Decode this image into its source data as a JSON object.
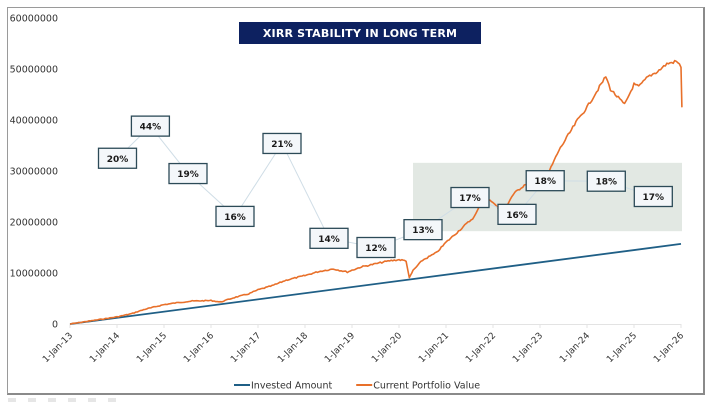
{
  "chart_data": {
    "type": "line",
    "title": "XIRR STABILITY IN LONG TERM",
    "xlabel": "",
    "ylabel": "",
    "ylim": [
      0,
      60000000
    ],
    "yticks": [
      0,
      10000000,
      20000000,
      30000000,
      40000000,
      50000000,
      60000000
    ],
    "ytick_labels": [
      "0",
      "10000000",
      "20000000",
      "30000000",
      "40000000",
      "50000000",
      "60000000"
    ],
    "xlim": [
      2013.0,
      2026.0
    ],
    "xtick_labels": [
      "1-Jan-13",
      "1-Jan-14",
      "1-Jan-15",
      "1-Jan-16",
      "1-Jan-17",
      "1-Jan-18",
      "1-Jan-19",
      "1-Jan-20",
      "1-Jan-21",
      "1-Jan-22",
      "1-Jan-23",
      "1-Jan-24",
      "1-Jan-25",
      "1-Jan-26"
    ],
    "grid": false,
    "legend_position": "bottom",
    "series": [
      {
        "name": "Invested Amount",
        "color": "#1f5f86",
        "x": [
          2013.0,
          2026.0
        ],
        "values": [
          0,
          15700000
        ]
      },
      {
        "name": "Current Portfolio Value",
        "color": "#e8702a",
        "x": [
          2013.0,
          2013.5,
          2014.0,
          2014.3,
          2014.6,
          2015.0,
          2015.3,
          2015.6,
          2016.0,
          2016.2,
          2016.5,
          2016.8,
          2017.0,
          2017.3,
          2017.6,
          2018.0,
          2018.3,
          2018.6,
          2018.9,
          2019.2,
          2019.5,
          2019.8,
          2020.0,
          2020.15,
          2020.22,
          2020.3,
          2020.5,
          2020.8,
          2021.0,
          2021.3,
          2021.6,
          2021.8,
          2022.0,
          2022.2,
          2022.4,
          2022.5,
          2022.7,
          2022.9,
          2023.0,
          2023.2,
          2023.4,
          2023.6,
          2023.8,
          2024.0,
          2024.2,
          2024.4,
          2024.5,
          2024.6,
          2024.8,
          2025.0,
          2025.1,
          2025.3,
          2025.5,
          2025.7,
          2025.9,
          2026.0,
          2026.02
        ],
        "values": [
          0,
          700000,
          1400000,
          2000000,
          2900000,
          3800000,
          4200000,
          4500000,
          4600000,
          4300000,
          5200000,
          5900000,
          6700000,
          7500000,
          8600000,
          9500000,
          10300000,
          10800000,
          10200000,
          11200000,
          11800000,
          12400000,
          12600000,
          12400000,
          9000000,
          10500000,
          12500000,
          14000000,
          16000000,
          18500000,
          21000000,
          24500000,
          24000000,
          21500000,
          25000000,
          26000000,
          27500000,
          26200000,
          27000000,
          30000000,
          34000000,
          37000000,
          40000000,
          42500000,
          45500000,
          48500000,
          46000000,
          45000000,
          43000000,
          47000000,
          46500000,
          48500000,
          49500000,
          51000000,
          51500000,
          50500000,
          42500000
        ]
      }
    ],
    "annotations": {
      "xirr_labels": [
        {
          "text": "20%",
          "x": 2013.5,
          "y": 32500000
        },
        {
          "text": "44%",
          "x": 2014.2,
          "y": 38800000
        },
        {
          "text": "19%",
          "x": 2015.0,
          "y": 29500000
        },
        {
          "text": "16%",
          "x": 2016.0,
          "y": 21100000
        },
        {
          "text": "21%",
          "x": 2017.0,
          "y": 35400000
        },
        {
          "text": "14%",
          "x": 2018.0,
          "y": 16800000
        },
        {
          "text": "12%",
          "x": 2019.0,
          "y": 15000000
        },
        {
          "text": "13%",
          "x": 2020.0,
          "y": 18500000
        },
        {
          "text": "17%",
          "x": 2021.0,
          "y": 24800000
        },
        {
          "text": "16%",
          "x": 2022.0,
          "y": 21500000
        },
        {
          "text": "18%",
          "x": 2022.6,
          "y": 28100000
        },
        {
          "text": "18%",
          "x": 2023.9,
          "y": 28000000
        },
        {
          "text": "17%",
          "x": 2024.9,
          "y": 25000000
        }
      ],
      "highlight_region": {
        "x_range": [
          2020.6,
          2026.0
        ],
        "y_range": [
          18200000,
          31600000
        ],
        "color": "#e2e8e3"
      },
      "connector_color": "#cfdde6",
      "label_border_color": "#2c4a57",
      "label_fill_color": "#f4f7fa"
    },
    "title_style": {
      "background": "#0d2160",
      "color": "#ffffff"
    }
  }
}
